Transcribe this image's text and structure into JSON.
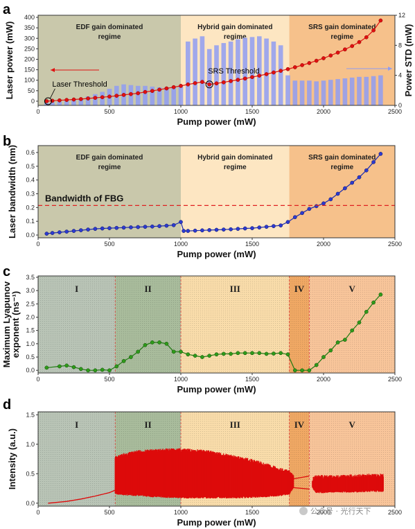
{
  "chart_data": [
    {
      "id": "a",
      "type": "line+bar",
      "panel_label": "a",
      "xlabel": "Pump power (mW)",
      "ylabel": "Laser power (mW)",
      "y2label": "Power STD (mW)",
      "xlim": [
        0,
        2500
      ],
      "ylim": [
        -20,
        410
      ],
      "y2lim": [
        0,
        12
      ],
      "xticks": [
        0,
        500,
        1000,
        1500,
        2000,
        2500
      ],
      "yticks": [
        0,
        50,
        100,
        150,
        200,
        250,
        300,
        350,
        400
      ],
      "y2ticks": [
        0,
        4,
        8,
        12
      ],
      "regions": [
        {
          "from": 0,
          "to": 1000,
          "color": "#c9c8ab",
          "label_line1": "EDF gain dominated",
          "label_line2": "regime"
        },
        {
          "from": 1000,
          "to": 1760,
          "color": "#fde6c2",
          "label_line1": "Hybrid gain dominated",
          "label_line2": "regime"
        },
        {
          "from": 1760,
          "to": 2500,
          "color": "#f6c18b",
          "label_line1": "SRS gain dominated",
          "label_line2": "regime"
        }
      ],
      "annotations": [
        {
          "text": "Laser Threshold",
          "x": 70,
          "y": 0
        },
        {
          "text": "SRS Threshold",
          "x": 1200,
          "y": 80
        }
      ],
      "series": [
        {
          "axis": "left",
          "kind": "line",
          "color": "#e01010",
          "x": [
            60,
            100,
            150,
            200,
            250,
            300,
            350,
            400,
            450,
            500,
            550,
            600,
            650,
            700,
            750,
            800,
            850,
            900,
            950,
            1000,
            1050,
            1100,
            1150,
            1200,
            1250,
            1300,
            1350,
            1400,
            1450,
            1500,
            1550,
            1600,
            1650,
            1700,
            1750,
            1800,
            1850,
            1900,
            1950,
            2000,
            2050,
            2100,
            2150,
            2200,
            2250,
            2300,
            2350,
            2400
          ],
          "values": [
            0,
            2,
            4,
            6,
            8,
            10,
            13,
            16,
            19,
            22,
            26,
            30,
            34,
            38,
            44,
            49,
            55,
            61,
            67,
            73,
            80,
            86,
            92,
            80,
            85,
            90,
            96,
            102,
            108,
            115,
            122,
            129,
            137,
            145,
            153,
            162,
            172,
            182,
            193,
            205,
            218,
            232,
            247,
            263,
            282,
            305,
            338,
            385
          ]
        },
        {
          "axis": "right",
          "kind": "bar",
          "color": "#8f9cf2",
          "x": [
            60,
            100,
            150,
            200,
            250,
            300,
            350,
            400,
            450,
            500,
            550,
            600,
            650,
            700,
            750,
            800,
            850,
            900,
            950,
            1000,
            1050,
            1100,
            1150,
            1200,
            1250,
            1300,
            1350,
            1400,
            1450,
            1500,
            1550,
            1600,
            1650,
            1700,
            1750,
            1800,
            1850,
            1900,
            1950,
            2000,
            2050,
            2100,
            2150,
            2200,
            2250,
            2300,
            2350,
            2400
          ],
          "values": [
            0.3,
            0.4,
            0.5,
            0.6,
            0.7,
            0.9,
            1.2,
            1.5,
            1.8,
            2.2,
            2.6,
            2.8,
            2.7,
            2.6,
            2.6,
            2.5,
            2.4,
            2.4,
            2.5,
            2.5,
            8.5,
            8.9,
            9.2,
            7.5,
            8.0,
            8.3,
            8.5,
            8.8,
            9.0,
            9.1,
            9.2,
            8.9,
            8.5,
            8.0,
            4.0,
            3.3,
            3.3,
            3.3,
            3.2,
            3.3,
            3.4,
            3.5,
            3.6,
            3.7,
            3.8,
            3.8,
            3.9,
            4.0
          ]
        }
      ]
    },
    {
      "id": "b",
      "type": "line",
      "panel_label": "b",
      "xlabel": "Pump power (mW)",
      "ylabel": "Laser bandwidth (nm)",
      "xlim": [
        0,
        2500
      ],
      "ylim": [
        -0.02,
        0.65
      ],
      "xticks": [
        0,
        500,
        1000,
        1500,
        2000,
        2500
      ],
      "yticks": [
        0.0,
        0.1,
        0.2,
        0.3,
        0.4,
        0.5,
        0.6
      ],
      "regions": [
        {
          "from": 0,
          "to": 1000,
          "color": "#c9c8ab",
          "label_line1": "EDF gain dominated",
          "label_line2": "regime"
        },
        {
          "from": 1000,
          "to": 1760,
          "color": "#fde6c2",
          "label_line1": "Hybrid gain dominated",
          "label_line2": "regime"
        },
        {
          "from": 1760,
          "to": 2500,
          "color": "#f6c18b",
          "label_line1": "SRS gain dominated",
          "label_line2": "regime"
        }
      ],
      "hline": {
        "y": 0.215,
        "label": "Bandwidth of FBG",
        "color": "#e02020"
      },
      "series": [
        {
          "color": "#1c2bb0",
          "x": [
            60,
            100,
            150,
            200,
            250,
            300,
            350,
            400,
            450,
            500,
            550,
            600,
            650,
            700,
            750,
            800,
            850,
            900,
            950,
            1000,
            1020,
            1050,
            1100,
            1150,
            1200,
            1250,
            1300,
            1350,
            1400,
            1450,
            1500,
            1550,
            1600,
            1650,
            1700,
            1750,
            1800,
            1850,
            1900,
            1950,
            2000,
            2050,
            2100,
            2150,
            2200,
            2250,
            2300,
            2350,
            2400
          ],
          "values": [
            0.01,
            0.015,
            0.02,
            0.025,
            0.03,
            0.035,
            0.04,
            0.045,
            0.048,
            0.05,
            0.052,
            0.054,
            0.056,
            0.058,
            0.06,
            0.062,
            0.065,
            0.068,
            0.072,
            0.095,
            0.03,
            0.03,
            0.032,
            0.034,
            0.036,
            0.038,
            0.04,
            0.042,
            0.045,
            0.048,
            0.05,
            0.055,
            0.06,
            0.065,
            0.07,
            0.095,
            0.13,
            0.16,
            0.19,
            0.21,
            0.23,
            0.26,
            0.3,
            0.34,
            0.38,
            0.42,
            0.47,
            0.53,
            0.59
          ]
        }
      ]
    },
    {
      "id": "c",
      "type": "line",
      "panel_label": "c",
      "xlabel": "Pump power (mW)",
      "ylabel_line1": "Maximum Lyapunov",
      "ylabel_line2": "exponent (ns⁻¹)",
      "xlim": [
        0,
        2500
      ],
      "ylim": [
        -0.1,
        3.55
      ],
      "xticks": [
        0,
        500,
        1000,
        1500,
        2000,
        2500
      ],
      "yticks": [
        0.0,
        0.5,
        1.0,
        1.5,
        2.0,
        2.5,
        3.0,
        3.5
      ],
      "regions": [
        {
          "from": 0,
          "to": 540,
          "color": "#b9c4b6",
          "label": "I"
        },
        {
          "from": 540,
          "to": 1000,
          "color": "#a9bc9c",
          "label": "II"
        },
        {
          "from": 1000,
          "to": 1760,
          "color": "#f9dcaa",
          "label": "III"
        },
        {
          "from": 1760,
          "to": 1900,
          "color": "#f0a864",
          "label": "IV"
        },
        {
          "from": 1900,
          "to": 2500,
          "color": "#f8c59a",
          "label": "V"
        }
      ],
      "series": [
        {
          "color": "#1e7a10",
          "x": [
            60,
            150,
            200,
            250,
            300,
            350,
            400,
            450,
            500,
            550,
            600,
            650,
            700,
            750,
            800,
            850,
            900,
            950,
            1000,
            1050,
            1100,
            1150,
            1200,
            1250,
            1300,
            1350,
            1400,
            1450,
            1500,
            1550,
            1600,
            1650,
            1700,
            1750,
            1800,
            1850,
            1900,
            1950,
            2000,
            2050,
            2100,
            2150,
            2200,
            2250,
            2300,
            2350,
            2400
          ],
          "values": [
            0.1,
            0.15,
            0.18,
            0.12,
            0.05,
            0.0,
            0.0,
            0.02,
            0.0,
            0.15,
            0.35,
            0.5,
            0.7,
            0.95,
            1.05,
            1.05,
            1.0,
            0.7,
            0.7,
            0.6,
            0.55,
            0.5,
            0.55,
            0.6,
            0.62,
            0.62,
            0.65,
            0.65,
            0.65,
            0.65,
            0.62,
            0.63,
            0.65,
            0.6,
            0.0,
            0.0,
            0.0,
            0.2,
            0.5,
            0.75,
            1.05,
            1.15,
            1.5,
            1.8,
            2.2,
            2.55,
            2.85
          ]
        }
      ]
    },
    {
      "id": "d",
      "type": "area",
      "panel_label": "d",
      "xlabel": "Pump power (mW)",
      "ylabel": "Intensity (a.u.)",
      "xlim": [
        0,
        2500
      ],
      "ylim": [
        -0.05,
        1.55
      ],
      "xticks": [
        0,
        500,
        1000,
        1500,
        2000,
        2500
      ],
      "yticks": [
        0.0,
        0.5,
        1.0,
        1.5
      ],
      "regions": [
        {
          "from": 0,
          "to": 540,
          "color": "#b9c4b6",
          "label": "I"
        },
        {
          "from": 540,
          "to": 1000,
          "color": "#a9bc9c",
          "label": "II"
        },
        {
          "from": 1000,
          "to": 1760,
          "color": "#f9dcaa",
          "label": "III"
        },
        {
          "from": 1760,
          "to": 1900,
          "color": "#f0a864",
          "label": "IV"
        },
        {
          "from": 1900,
          "to": 2500,
          "color": "#f8c59a",
          "label": "V"
        }
      ],
      "series": [
        {
          "name": "",
          "color": "#dd0b0b",
          "envelope_x": [
            540,
            600,
            700,
            800,
            900,
            1000,
            1100,
            1200,
            1300,
            1400,
            1500,
            1600,
            1700,
            1760,
            1800,
            1900,
            1950,
            2000,
            2100,
            2200,
            2250,
            2300,
            2420
          ],
          "upper": [
            0.8,
            0.85,
            0.9,
            0.92,
            0.93,
            0.93,
            0.92,
            0.9,
            0.85,
            0.8,
            0.75,
            0.68,
            0.6,
            0.56,
            0.45,
            0.4,
            0.48,
            0.48,
            0.48,
            0.49,
            0.49,
            0.5,
            0.5
          ],
          "lower": [
            0.15,
            0.13,
            0.12,
            0.1,
            0.09,
            0.08,
            0.08,
            0.08,
            0.08,
            0.08,
            0.09,
            0.1,
            0.12,
            0.14,
            0.3,
            0.3,
            0.17,
            0.17,
            0.18,
            0.18,
            0.18,
            0.19,
            0.19
          ],
          "trace_x": [
            70,
            200,
            300,
            400,
            500,
            540
          ],
          "trace_y": [
            0.0,
            0.03,
            0.07,
            0.12,
            0.18,
            0.22
          ]
        }
      ]
    }
  ],
  "watermark": "公众号 · 光行天下"
}
